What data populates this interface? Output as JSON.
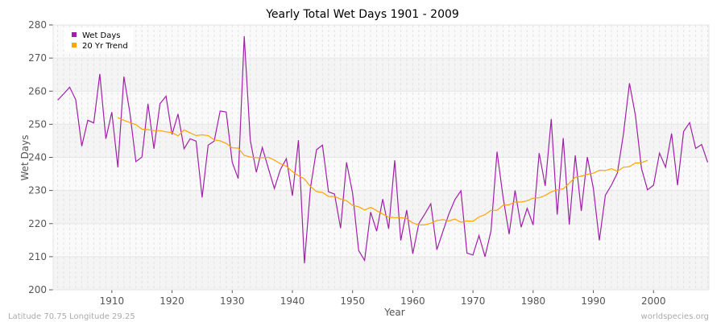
{
  "chart_data": {
    "type": "line",
    "title": "Yearly Total Wet Days 1901 - 2009",
    "xlabel": "Year",
    "ylabel": "Wet Days",
    "xlim": [
      1900.25,
      2009.2
    ],
    "ylim": [
      200,
      280
    ],
    "xticks": [
      1910,
      1920,
      1930,
      1940,
      1950,
      1960,
      1970,
      1980,
      1990,
      2000
    ],
    "yticks": [
      200,
      210,
      220,
      230,
      240,
      250,
      260,
      270,
      280
    ],
    "grid": true,
    "legend_position": "top-left",
    "series": [
      {
        "name": "Wet Days",
        "color": "#a020a8",
        "x_start": 1901,
        "values": [
          257.3,
          259.2,
          261.2,
          257.4,
          243.4,
          251.2,
          250.4,
          265.2,
          245.6,
          253.7,
          237.0,
          264.4,
          253.4,
          238.7,
          240.1,
          256.2,
          242.6,
          256.2,
          258.5,
          246.9,
          253.1,
          242.6,
          245.6,
          244.9,
          227.9,
          243.7,
          244.9,
          254.0,
          253.7,
          238.5,
          233.6,
          276.6,
          245.2,
          235.5,
          243.0,
          236.7,
          230.6,
          236.3,
          239.6,
          228.4,
          245.2,
          208.0,
          230.8,
          242.3,
          243.7,
          229.6,
          228.9,
          218.6,
          238.5,
          229.2,
          211.9,
          208.9,
          223.5,
          217.7,
          227.4,
          218.4,
          239.1,
          214.9,
          224.1,
          210.9,
          220.0,
          222.9,
          226.0,
          212.1,
          217.6,
          222.9,
          227.2,
          229.9,
          211.1,
          210.5,
          216.4,
          210.0,
          217.8,
          241.7,
          228.0,
          216.8,
          230.0,
          218.9,
          224.6,
          219.6,
          241.3,
          231.4,
          251.6,
          222.7,
          245.8,
          219.7,
          240.6,
          223.8,
          240.1,
          230.6,
          214.9,
          228.6,
          231.6,
          235.3,
          247.0,
          262.4,
          252.7,
          236.7,
          230.2,
          231.6,
          241.3,
          237.0,
          247.2,
          231.6,
          247.8,
          250.5,
          242.7,
          243.9,
          238.5
        ]
      },
      {
        "name": "20 Yr Trend",
        "color": "#ffa500",
        "x_start": 1911,
        "values": [
          252.0,
          251.2,
          250.5,
          249.9,
          248.5,
          248.4,
          248.1,
          248.1,
          247.7,
          247.5,
          246.5,
          248.3,
          247.4,
          246.6,
          246.8,
          246.6,
          245.3,
          245.0,
          244.2,
          242.9,
          242.8,
          240.6,
          240.1,
          239.9,
          239.9,
          240.0,
          239.2,
          238.1,
          237.3,
          235.7,
          234.5,
          233.5,
          231.2,
          229.7,
          229.4,
          228.2,
          228.2,
          227.4,
          226.9,
          225.5,
          225.1,
          224.1,
          224.9,
          223.9,
          222.9,
          221.9,
          221.8,
          221.8,
          221.5,
          220.2,
          219.6,
          219.6,
          220.1,
          220.9,
          221.2,
          220.8,
          221.4,
          220.4,
          220.8,
          220.7,
          222.0,
          222.7,
          224.0,
          224.0,
          225.5,
          225.7,
          226.5,
          226.5,
          226.9,
          227.7,
          227.8,
          228.5,
          229.6,
          230.2,
          230.5,
          232.2,
          234.0,
          234.3,
          234.9,
          235.2,
          236.1,
          236.0,
          236.6,
          235.8,
          237.0,
          237.2,
          238.3,
          238.4,
          239.1
        ]
      }
    ]
  },
  "footer": {
    "location": "Latitude 70.75 Longitude 29.25",
    "source": "worldspecies.org"
  }
}
